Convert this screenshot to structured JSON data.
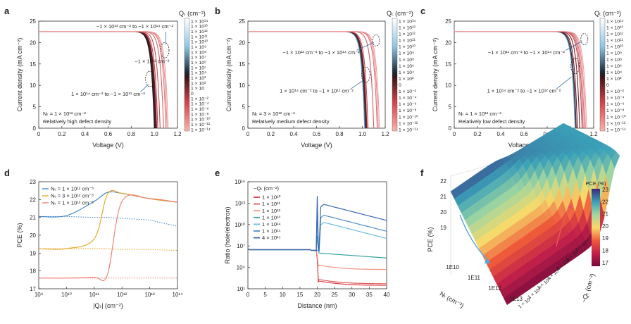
{
  "panel_labels": [
    "a",
    "b",
    "c",
    "d",
    "e",
    "f"
  ],
  "chart_data": [
    {
      "type": "line",
      "panel": "a",
      "xlabel": "Voltage (V)",
      "ylabel": "Current density (mA cm⁻²)",
      "xlim": [
        0,
        1.2
      ],
      "ylim": [
        0,
        25
      ],
      "xticks": [
        "0",
        "0.2",
        "0.4",
        "0.6",
        "0.8",
        "1.0",
        "1.2"
      ],
      "yticks": [
        "0",
        "5",
        "10",
        "15",
        "20",
        "25"
      ],
      "jsc": 22.6,
      "voc_values": [
        1.0,
        1.005,
        1.01,
        1.015,
        1.02,
        1.03,
        1.05,
        1.08,
        1.1,
        1.11,
        1.12
      ],
      "density_line1": "Nₜ = 1 × 10¹³ cm⁻³",
      "density_line2": "Relatively high defect density",
      "annotations": [
        "−1 × 10¹³ cm⁻² to −1 × 10¹⁴ cm⁻²",
        "−1 × 10¹² cm⁻²",
        "1 × 10¹⁴ cm⁻² to −1 × 10¹¹ cm⁻²"
      ]
    },
    {
      "type": "line",
      "panel": "b",
      "xlabel": "Voltage (V)",
      "ylabel": "Current density (mA cm⁻²)",
      "xlim": [
        0,
        1.2
      ],
      "ylim": [
        0,
        25
      ],
      "xticks": [
        "0",
        "0.2",
        "0.4",
        "0.6",
        "0.8",
        "1.0",
        "1.2"
      ],
      "yticks": [
        "0",
        "5",
        "10",
        "15",
        "20",
        "25"
      ],
      "jsc": 22.6,
      "voc_values": [
        1.02,
        1.025,
        1.03,
        1.035,
        1.04,
        1.05,
        1.1,
        1.13,
        1.14,
        1.15
      ],
      "density_line1": "Nₜ = 3 × 10¹² cm⁻³",
      "density_line2": "Relatively medium defect density",
      "annotations": [
        "−1 × 10¹² cm⁻² to −1 × 10¹⁴ cm⁻²",
        "1 × 10¹⁴ cm⁻² to −1 × 10¹¹ cm⁻²"
      ]
    },
    {
      "type": "line",
      "panel": "c",
      "xlabel": "Voltage (V)",
      "ylabel": "Current density (mA cm⁻²)",
      "xlim": [
        0,
        1.2
      ],
      "ylim": [
        0,
        25
      ],
      "xticks": [
        "0",
        "0.2",
        "0.4",
        "0.6",
        "0.8",
        "1.0",
        "1.2"
      ],
      "yticks": [
        "0",
        "5",
        "10",
        "15",
        "20",
        "25"
      ],
      "jsc": 22.6,
      "voc_values": [
        1.04,
        1.045,
        1.05,
        1.06,
        1.08,
        1.1,
        1.11,
        1.12,
        1.13,
        1.14
      ],
      "density_line1": "Nₜ = 1 × 10¹² cm⁻³",
      "density_line2": "Relatively low defect density",
      "annotations": [
        "−1 × 10¹¹ cm⁻² to −1 × 10¹⁴ cm⁻²",
        "1 × 10¹⁴ cm⁻² to −1 × 10¹² cm⁻²"
      ]
    },
    {
      "type": "line",
      "panel": "d",
      "xlabel": "|Qₜ| (cm⁻²)",
      "ylabel": "PCE (%)",
      "x_scale": "log",
      "xlim": [
        1000000000.0,
        100000000000000.0
      ],
      "ylim": [
        17,
        23
      ],
      "xticks": [
        "10⁹",
        "10¹⁰",
        "10¹¹",
        "10¹²",
        "10¹³",
        "10¹⁴"
      ],
      "yticks": [
        "17",
        "18",
        "19",
        "20",
        "21",
        "22",
        "23"
      ],
      "x": [
        1000000000.0,
        10000000000.0,
        100000000000.0,
        300000000000.0,
        1000000000000.0,
        10000000000000.0,
        100000000000000.0
      ],
      "series": [
        {
          "name": "Nₜ = 1 × 10¹² cm⁻³",
          "color": "#3a7fc4",
          "values": [
            21.05,
            21.1,
            21.9,
            22.4,
            22.35,
            22.05,
            21.85
          ],
          "dotted_values": [
            21.05,
            21.05,
            21.0,
            21.0,
            20.95,
            20.85,
            20.5
          ]
        },
        {
          "name": "Nₜ = 3 × 10¹² cm⁻³",
          "color": "#e9a21a",
          "values": [
            19.25,
            19.25,
            19.8,
            22.3,
            22.35,
            22.05,
            21.85
          ],
          "dotted_values": [
            19.25,
            19.25,
            19.25,
            19.25,
            19.2,
            19.2,
            19.15
          ]
        },
        {
          "name": "Nₜ = 1 × 10¹³ cm⁻³",
          "color": "#f07a6e",
          "values": [
            17.6,
            17.6,
            17.65,
            17.8,
            21.9,
            22.05,
            21.85
          ],
          "dotted_values": [
            17.6,
            17.6,
            17.6,
            17.6,
            17.6,
            17.6,
            17.6
          ]
        }
      ]
    },
    {
      "type": "line",
      "panel": "e",
      "xlabel": "Distance (nm)",
      "ylabel": "Ratio (hole/electron)",
      "y_scale": "log",
      "xlim": [
        0,
        40
      ],
      "ylim": [
        10,
        1e+16
      ],
      "xticks": [
        "0",
        "5",
        "10",
        "15",
        "20",
        "25",
        "30",
        "35",
        "40"
      ],
      "yticks": [
        "10¹",
        "10⁴",
        "10⁷",
        "10¹⁰",
        "10¹³",
        "10¹⁶"
      ],
      "legend_title": "−Qₜ (cm⁻²)",
      "series": [
        {
          "name": "1 × 10¹⁰",
          "color": "#d63a44",
          "left": 3000000.0,
          "right": 30
        },
        {
          "name": "1 × 10¹¹",
          "color": "#e05a5a",
          "left": 3000000.0,
          "right": 50
        },
        {
          "name": "1 × 10¹²",
          "color": "#f2957f",
          "left": 3000000.0,
          "right": 5000
        },
        {
          "name": "1 × 10¹³",
          "color": "#35a3a8",
          "left": 3000000.0,
          "right": 1000000.0
        },
        {
          "name": "1 × 10¹⁴",
          "color": "#6bbdd6",
          "left": 3000000.0,
          "right": 2000000.0
        },
        {
          "name": "1 × 10¹⁵",
          "color": "#4f8ec9",
          "left": 3000000.0,
          "right": 3000000.0
        },
        {
          "name": "4 × 10¹⁵",
          "color": "#3a66b0",
          "left": 3000000.0,
          "right": 4000000.0
        }
      ]
    },
    {
      "type": "surface",
      "panel": "f",
      "xlabel": "Nₜ (cm⁻³)",
      "ylabel": "−Qₜ (cm⁻²)",
      "zlabel": "PCE (%)",
      "zlim": [
        17,
        23
      ],
      "zticks": [
        "19",
        "20",
        "21",
        "22"
      ],
      "x_ticks": [
        "1E10",
        "1E11",
        "1E12",
        "1E13"
      ],
      "y_ticks": [
        "1 × 10⁹",
        "1 × 10¹⁰",
        "1 × 10¹¹",
        "1 × 10¹²",
        "1 × 10¹³",
        "1 × 10¹⁴",
        "1 × 10¹⁵"
      ],
      "colorbar_title": "PCE (%)",
      "colorbar_ticks": [
        "23",
        "22",
        "21",
        "20",
        "19",
        "18",
        "17"
      ]
    }
  ],
  "colorbar_qt": {
    "title": "Qₜ (cm⁻²)",
    "labels": [
      "1 × 10¹⁴",
      "1 × 10¹³",
      "1 × 10¹²",
      "1 × 10¹¹",
      "1 × 10¹⁰",
      "1 × 10⁹",
      "1 × 10⁸",
      "1 × 10⁷",
      "1 × 10⁶",
      "1 × 10⁵",
      "1 × 10⁴",
      "1 × 10³",
      "1 × 10²",
      "1 × 10",
      "0",
      "1 × 10⁻²",
      "1 × 10⁻⁴",
      "1 × 10⁻⁶",
      "1 × 10⁻⁸",
      "1 × 10⁻¹⁰",
      "1 × 10⁻¹²",
      "1 × 10⁻¹⁴"
    ],
    "labels_short": [
      "1 × 10¹⁴",
      "1 × 10¹³",
      "1 × 10¹²",
      "1 × 10¹¹",
      "1 × 10¹⁰",
      "1 × 10⁹",
      "1 × 10⁸",
      "1 × 10⁶",
      "1 × 10⁴",
      "1 × 10²",
      "0",
      "1 × 10⁻²",
      "1 × 10⁻⁴",
      "1 × 10⁻⁶",
      "1 × 10⁻⁸",
      "1 × 10⁻¹⁰",
      "1 × 10⁻¹²",
      "1 × 10⁻¹⁴"
    ]
  }
}
